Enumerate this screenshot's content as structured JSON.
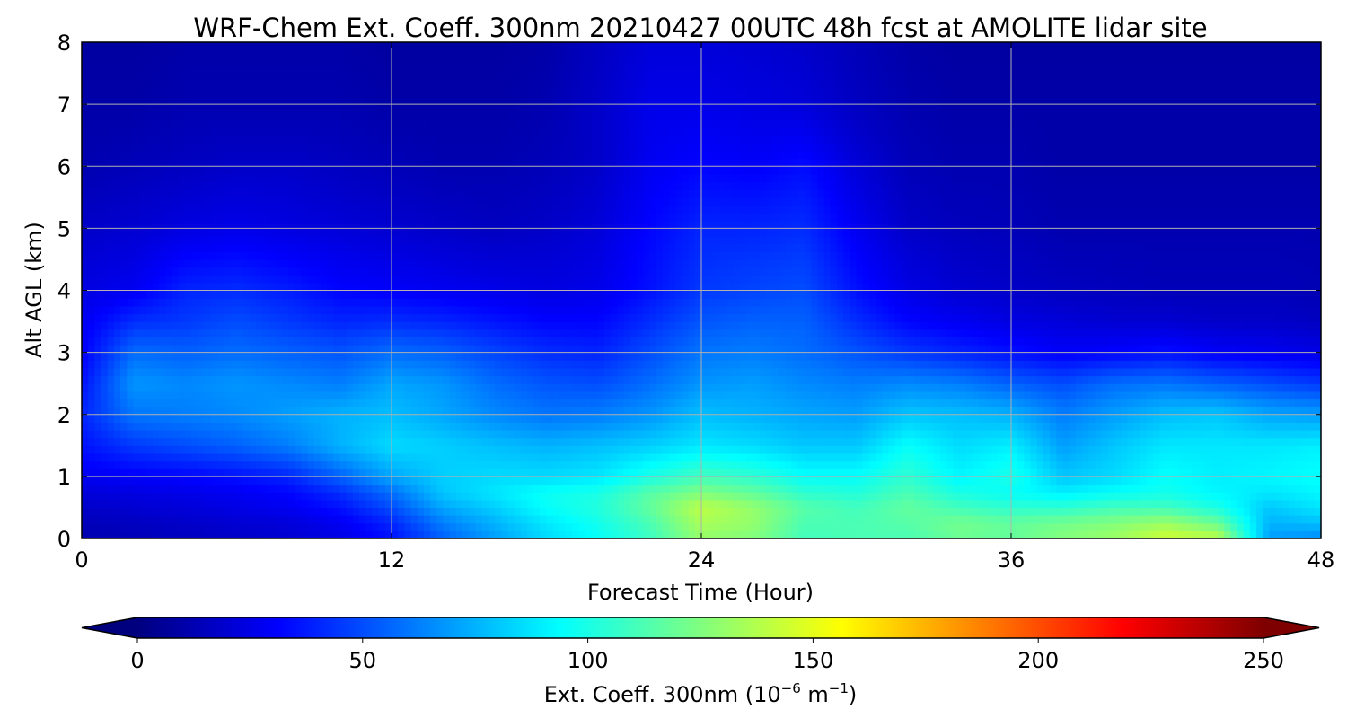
{
  "chart_data": {
    "type": "heatmap",
    "title": "WRF-Chem Ext. Coeff. 300nm  20210427 00UTC 48h fcst at AMOLITE lidar site",
    "xlabel": "Forecast Time (Hour)",
    "ylabel": "Alt AGL (km)",
    "xlim": [
      0,
      48
    ],
    "ylim": [
      0,
      8
    ],
    "x_ticks": [
      "0",
      "12",
      "24",
      "36",
      "48"
    ],
    "y_ticks": [
      "0",
      "1",
      "2",
      "3",
      "4",
      "5",
      "6",
      "7",
      "8"
    ],
    "grid": true,
    "colormap": "jet",
    "colorbar": {
      "orientation": "horizontal",
      "position": "bottom",
      "range": [
        0,
        250
      ],
      "extend": "both",
      "ticks": [
        "0",
        "50",
        "100",
        "150",
        "200",
        "250"
      ],
      "label_main": "Ext. Coeff. 300nm  (10",
      "label_exp1": "−6",
      "label_mid": " m",
      "label_exp2": "−1",
      "label_end": ")"
    },
    "grid_values": {
      "x": [
        0,
        2,
        4,
        6,
        8,
        10,
        12,
        14,
        16,
        18,
        20,
        22,
        24,
        26,
        28,
        30,
        32,
        34,
        36,
        38,
        40,
        42,
        44,
        46,
        48
      ],
      "y": [
        0,
        0.25,
        0.5,
        0.75,
        1.0,
        1.5,
        2.0,
        2.5,
        3.0,
        3.5,
        4.0,
        5.0,
        6.0,
        7.0,
        8.0
      ],
      "z": [
        [
          12,
          14,
          16,
          18,
          20,
          25,
          35,
          55,
          70,
          85,
          95,
          108,
          130,
          125,
          110,
          112,
          112,
          120,
          118,
          126,
          132,
          145,
          140,
          70,
          65
        ],
        [
          14,
          16,
          18,
          20,
          22,
          28,
          40,
          62,
          75,
          88,
          98,
          112,
          135,
          130,
          112,
          112,
          115,
          122,
          118,
          122,
          126,
          132,
          120,
          75,
          78
        ],
        [
          18,
          20,
          22,
          25,
          28,
          35,
          50,
          72,
          82,
          95,
          102,
          118,
          140,
          130,
          115,
          110,
          118,
          110,
          105,
          105,
          110,
          110,
          100,
          80,
          88
        ],
        [
          22,
          24,
          26,
          28,
          32,
          42,
          58,
          80,
          88,
          96,
          100,
          115,
          125,
          118,
          105,
          102,
          112,
          100,
          95,
          90,
          95,
          98,
          92,
          88,
          92
        ],
        [
          28,
          30,
          32,
          35,
          40,
          55,
          72,
          82,
          85,
          85,
          88,
          100,
          110,
          105,
          95,
          95,
          105,
          92,
          100,
          80,
          85,
          95,
          90,
          92,
          95
        ],
        [
          35,
          45,
          50,
          55,
          62,
          75,
          85,
          82,
          78,
          75,
          78,
          82,
          88,
          85,
          80,
          80,
          95,
          85,
          90,
          70,
          80,
          88,
          88,
          88,
          90
        ],
        [
          40,
          60,
          62,
          65,
          70,
          75,
          78,
          72,
          65,
          60,
          62,
          68,
          78,
          75,
          72,
          70,
          80,
          78,
          75,
          62,
          70,
          78,
          80,
          72,
          70
        ],
        [
          35,
          68,
          65,
          68,
          65,
          62,
          72,
          68,
          58,
          52,
          50,
          58,
          68,
          70,
          65,
          62,
          65,
          62,
          55,
          50,
          58,
          60,
          55,
          50,
          45
        ],
        [
          30,
          58,
          55,
          58,
          55,
          52,
          58,
          55,
          48,
          42,
          40,
          50,
          60,
          62,
          58,
          52,
          45,
          40,
          35,
          30,
          32,
          35,
          30,
          28,
          25
        ],
        [
          28,
          42,
          45,
          50,
          45,
          40,
          42,
          40,
          36,
          32,
          32,
          42,
          52,
          55,
          55,
          42,
          32,
          28,
          24,
          22,
          20,
          20,
          18,
          18,
          16
        ],
        [
          24,
          28,
          40,
          42,
          38,
          32,
          30,
          28,
          26,
          24,
          26,
          35,
          45,
          48,
          50,
          35,
          25,
          20,
          18,
          16,
          15,
          14,
          14,
          14,
          13
        ],
        [
          18,
          20,
          24,
          26,
          24,
          22,
          20,
          18,
          16,
          18,
          22,
          32,
          40,
          40,
          42,
          28,
          18,
          15,
          14,
          12,
          12,
          12,
          12,
          12,
          12
        ],
        [
          12,
          14,
          16,
          18,
          18,
          16,
          14,
          12,
          12,
          14,
          18,
          28,
          32,
          30,
          34,
          22,
          14,
          12,
          12,
          10,
          10,
          10,
          10,
          10,
          10
        ],
        [
          10,
          10,
          12,
          12,
          12,
          12,
          10,
          10,
          10,
          12,
          18,
          26,
          26,
          24,
          22,
          16,
          12,
          10,
          10,
          10,
          10,
          10,
          10,
          10,
          10
        ],
        [
          8,
          8,
          10,
          10,
          10,
          10,
          8,
          8,
          8,
          10,
          16,
          22,
          22,
          20,
          18,
          14,
          10,
          8,
          8,
          8,
          8,
          8,
          8,
          8,
          8
        ]
      ]
    }
  }
}
